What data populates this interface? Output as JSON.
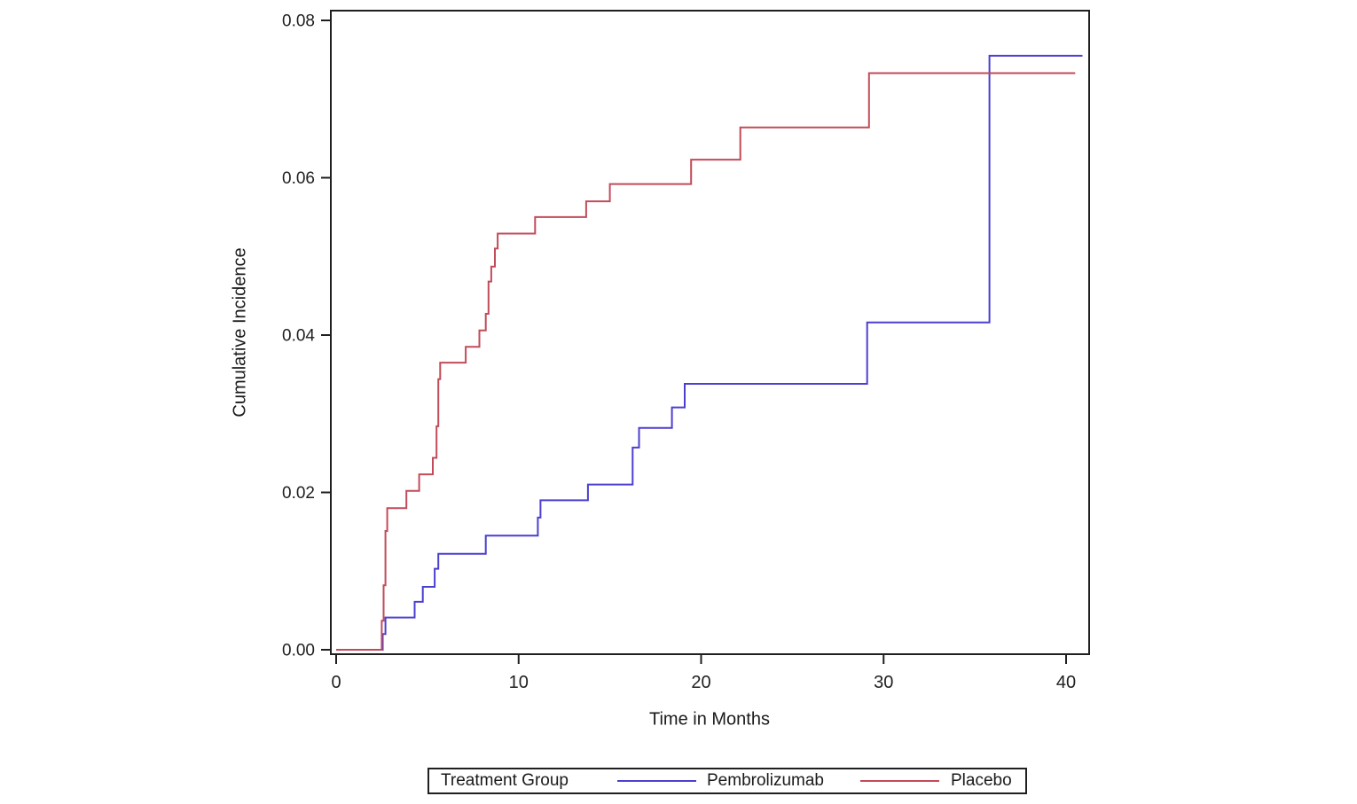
{
  "chart_data": {
    "type": "line",
    "subtype": "step",
    "title": "",
    "xlabel": "Time in Months",
    "ylabel": "Cumulative Incidence",
    "xlim": [
      0,
      41.3
    ],
    "ylim": [
      0,
      0.0812
    ],
    "xticks": [
      0,
      10,
      20,
      30,
      40
    ],
    "ytick_labels": [
      "0.00",
      "0.02",
      "0.04",
      "0.06",
      "0.08"
    ],
    "grid": false,
    "frame": true,
    "legend": {
      "title": "Treatment Group",
      "position": "bottom",
      "entries": [
        {
          "label": "Pembrolizumab",
          "color": "#4b3fd0"
        },
        {
          "label": "Placebo",
          "color": "#c24b59"
        }
      ]
    },
    "series": [
      {
        "name": "Pembrolizumab",
        "color": "#4b3fd0",
        "start": [
          0,
          0
        ],
        "end_time": 40.9,
        "steps": [
          [
            2.55,
            0.002
          ],
          [
            2.7,
            0.0041
          ],
          [
            4.3,
            0.0061
          ],
          [
            4.75,
            0.008
          ],
          [
            5.4,
            0.0103
          ],
          [
            5.6,
            0.0122
          ],
          [
            8.2,
            0.0145
          ],
          [
            11.05,
            0.0168
          ],
          [
            11.2,
            0.019
          ],
          [
            13.8,
            0.021
          ],
          [
            16.25,
            0.0257
          ],
          [
            16.6,
            0.0282
          ],
          [
            18.4,
            0.0308
          ],
          [
            19.1,
            0.0338
          ],
          [
            29.1,
            0.0416
          ],
          [
            35.8,
            0.0755
          ]
        ]
      },
      {
        "name": "Placebo",
        "color": "#c24b59",
        "start": [
          0,
          0
        ],
        "end_time": 40.5,
        "steps": [
          [
            2.5,
            0.0037
          ],
          [
            2.6,
            0.0082
          ],
          [
            2.7,
            0.0151
          ],
          [
            2.8,
            0.018
          ],
          [
            3.85,
            0.0202
          ],
          [
            4.55,
            0.0223
          ],
          [
            5.3,
            0.0244
          ],
          [
            5.5,
            0.0284
          ],
          [
            5.6,
            0.0344
          ],
          [
            5.7,
            0.0365
          ],
          [
            7.1,
            0.0385
          ],
          [
            7.85,
            0.0406
          ],
          [
            8.2,
            0.0427
          ],
          [
            8.35,
            0.0468
          ],
          [
            8.5,
            0.0487
          ],
          [
            8.7,
            0.051
          ],
          [
            8.85,
            0.0529
          ],
          [
            10.9,
            0.055
          ],
          [
            13.7,
            0.057
          ],
          [
            15.0,
            0.0592
          ],
          [
            19.45,
            0.0623
          ],
          [
            22.15,
            0.0664
          ],
          [
            29.2,
            0.0733
          ]
        ]
      }
    ]
  }
}
